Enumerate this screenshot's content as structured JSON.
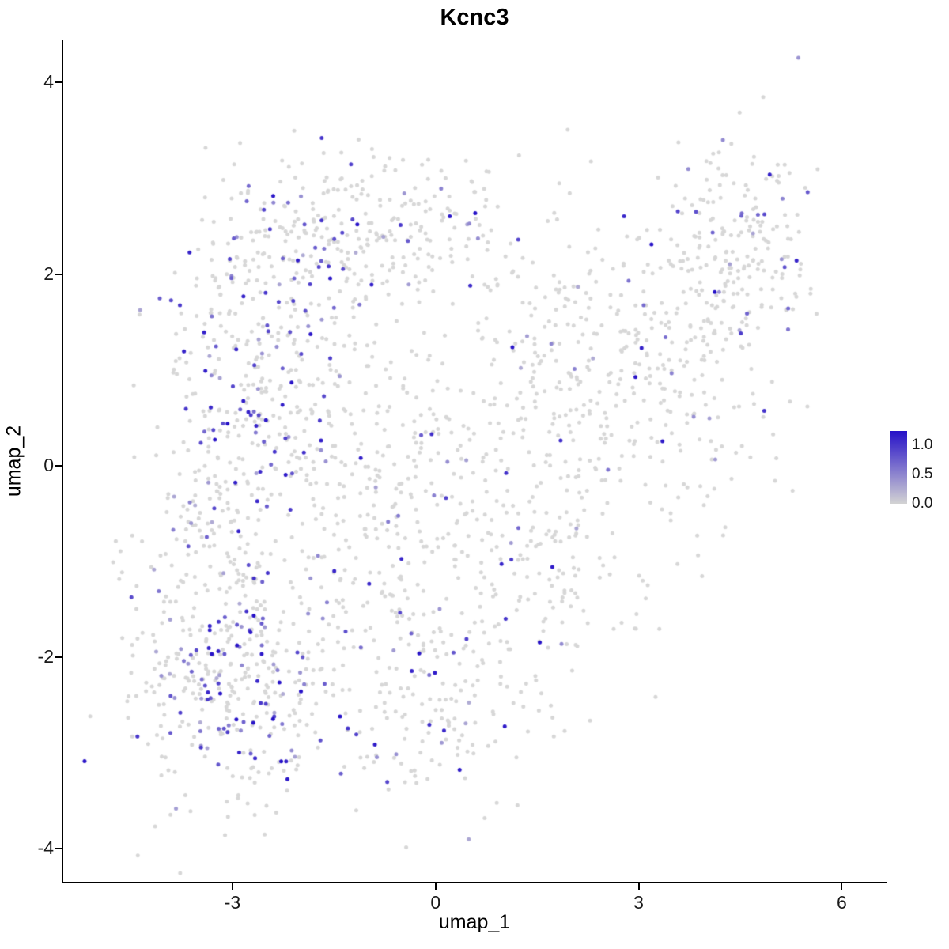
{
  "chart_data": {
    "type": "scatter",
    "title": "Kcnc3",
    "xlabel": "umap_1",
    "ylabel": "umap_2",
    "xlim": [
      -5.5,
      6.65
    ],
    "ylim": [
      -4.35,
      4.45
    ],
    "xticks": [
      -3,
      0,
      3,
      6
    ],
    "yticks": [
      -4,
      -2,
      0,
      2,
      4
    ],
    "grid": false,
    "background": "#ffffff",
    "legend": {
      "position": "right",
      "labels": [
        "1.0",
        "0.5",
        "0.0"
      ],
      "values": [
        1.0,
        0.5,
        0.0
      ],
      "low_color": "#d3d3d3",
      "high_color": "#2611c8",
      "value_max": 1.25
    },
    "point": {
      "radius": 2.5,
      "gray_color": "#d7d7d7"
    },
    "seed": 7,
    "clusters": [
      {
        "cx": -3.0,
        "cy": -2.25,
        "sdx": 0.8,
        "sdy": 0.62,
        "n": 360,
        "p_expressed": 0.3
      },
      {
        "cx": -3.1,
        "cy": -0.5,
        "sdx": 0.55,
        "sdy": 0.75,
        "n": 170,
        "p_expressed": 0.22
      },
      {
        "cx": -2.5,
        "cy": 1.1,
        "sdx": 0.75,
        "sdy": 0.8,
        "n": 290,
        "p_expressed": 0.24
      },
      {
        "cx": -1.4,
        "cy": 2.4,
        "sdx": 0.95,
        "sdy": 0.42,
        "n": 210,
        "p_expressed": 0.16
      },
      {
        "cx": 0.0,
        "cy": 2.7,
        "sdx": 0.6,
        "sdy": 0.3,
        "n": 70,
        "p_expressed": 0.12
      },
      {
        "cx": -0.9,
        "cy": -0.5,
        "sdx": 0.95,
        "sdy": 1.05,
        "n": 230,
        "p_expressed": 0.1
      },
      {
        "cx": 0.0,
        "cy": -2.25,
        "sdx": 0.85,
        "sdy": 0.7,
        "n": 190,
        "p_expressed": 0.12
      },
      {
        "cx": 1.2,
        "cy": 0.5,
        "sdx": 0.95,
        "sdy": 1.0,
        "n": 190,
        "p_expressed": 0.07
      },
      {
        "cx": 1.8,
        "cy": -1.1,
        "sdx": 0.7,
        "sdy": 0.55,
        "n": 100,
        "p_expressed": 0.08
      },
      {
        "cx": 2.6,
        "cy": 1.3,
        "sdx": 0.8,
        "sdy": 0.8,
        "n": 160,
        "p_expressed": 0.06
      },
      {
        "cx": 3.7,
        "cy": 1.0,
        "sdx": 0.65,
        "sdy": 0.85,
        "n": 140,
        "p_expressed": 0.06
      },
      {
        "cx": 4.55,
        "cy": 2.25,
        "sdx": 0.55,
        "sdy": 0.6,
        "n": 190,
        "p_expressed": 0.1
      },
      {
        "cx": -4.6,
        "cy": -1.2,
        "sdx": 0.12,
        "sdy": 0.2,
        "n": 7,
        "p_expressed": 0.0
      }
    ]
  }
}
